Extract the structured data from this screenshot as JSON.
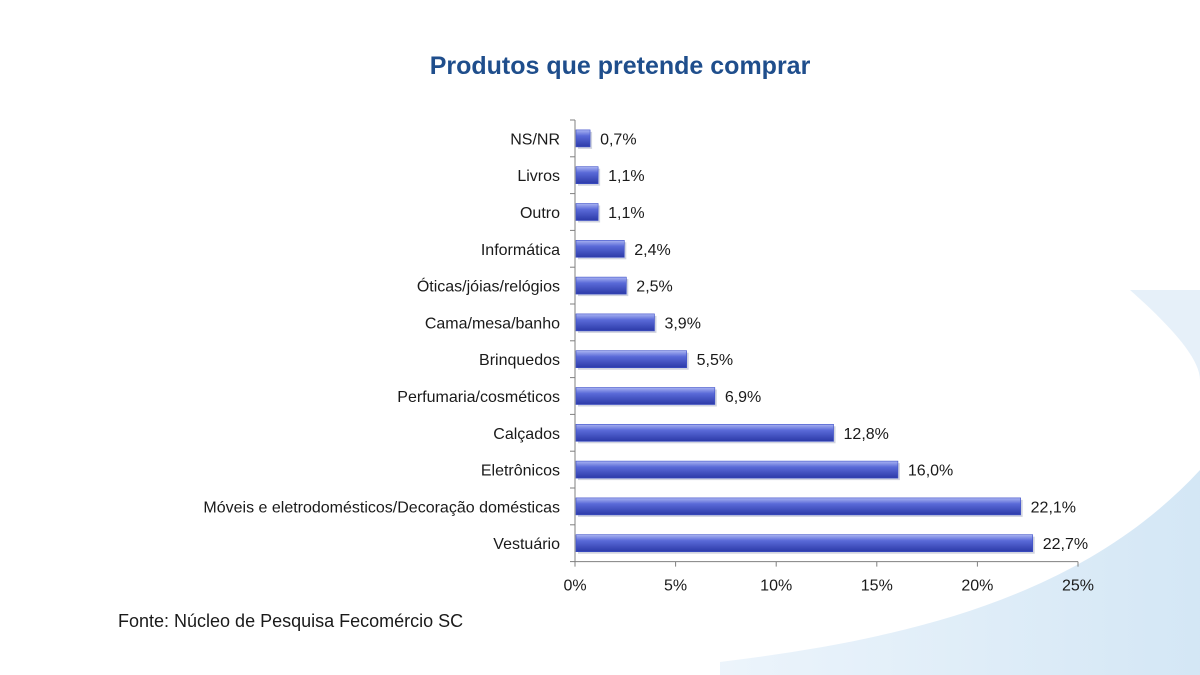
{
  "chart_data": {
    "type": "bar",
    "orientation": "horizontal",
    "title": "Produtos que pretende comprar",
    "categories": [
      "NS/NR",
      "Livros",
      "Outro",
      "Informática",
      "Óticas/jóias/relógios",
      "Cama/mesa/banho",
      "Brinquedos",
      "Perfumaria/cosméticos",
      "Calçados",
      "Eletrônicos",
      "Móveis e eletrodomésticos/Decoração domésticas",
      "Vestuário"
    ],
    "values": [
      0.7,
      1.1,
      1.1,
      2.4,
      2.5,
      3.9,
      5.5,
      6.9,
      12.8,
      16.0,
      22.1,
      22.7
    ],
    "value_labels": [
      "0,7%",
      "1,1%",
      "1,1%",
      "2,4%",
      "2,5%",
      "3,9%",
      "5,5%",
      "6,9%",
      "12,8%",
      "16,0%",
      "22,1%",
      "22,7%"
    ],
    "xlim": [
      0,
      25
    ],
    "xticks": [
      0,
      5,
      10,
      15,
      20,
      25
    ],
    "xtick_labels": [
      "0%",
      "5%",
      "10%",
      "15%",
      "20%",
      "25%"
    ],
    "xlabel": "",
    "ylabel": "",
    "grid": false,
    "legend": "none",
    "bar_color": "#3d4fc9"
  },
  "source": "Fonte: Núcleo de Pesquisa Fecomércio SC"
}
